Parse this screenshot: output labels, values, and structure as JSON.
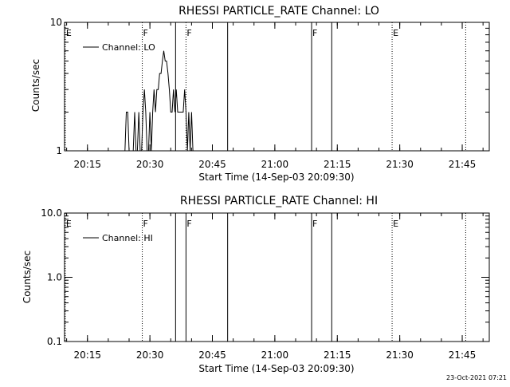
{
  "chart_data": [
    {
      "type": "line",
      "title": "RHESSI PARTICLE_RATE Channel: LO",
      "xlabel": "Start Time (14-Sep-03 20:09:30)",
      "ylabel": "Counts/sec",
      "y_scale": "log",
      "xlim": [
        "20:09:30",
        "21:51:30"
      ],
      "ylim": [
        1,
        10
      ],
      "x_ticks": [
        "20:15",
        "20:30",
        "20:45",
        "21:00",
        "21:15",
        "21:30",
        "21:45"
      ],
      "y_ticks": [
        "1",
        "10"
      ],
      "legend": {
        "position": "top-left",
        "entries": [
          "Channel: LO"
        ]
      },
      "series": [
        {
          "name": "Channel: LO",
          "x": [
            "20:24:00",
            "20:24:20",
            "20:24:40",
            "20:25:00",
            "20:25:20",
            "20:26:00",
            "20:26:20",
            "20:26:40",
            "20:27:00",
            "20:27:20",
            "20:27:40",
            "20:28:00",
            "20:28:20",
            "20:28:40",
            "20:29:00",
            "20:29:20",
            "20:29:40",
            "20:30:00",
            "20:30:20",
            "20:30:40",
            "20:31:00",
            "20:31:20",
            "20:31:40",
            "20:32:00",
            "20:32:20",
            "20:32:40",
            "20:33:00",
            "20:33:20",
            "20:33:40",
            "20:34:00",
            "20:34:20",
            "20:34:40",
            "20:35:00",
            "20:35:20",
            "20:35:40",
            "20:36:00",
            "20:36:20",
            "20:36:40",
            "20:37:00",
            "20:37:20",
            "20:37:40",
            "20:38:00",
            "20:38:20",
            "20:38:40",
            "20:39:00",
            "20:39:20",
            "20:39:40",
            "20:40:00",
            "20:40:20"
          ],
          "y": [
            1,
            2,
            2,
            1,
            1,
            1,
            2,
            1,
            1,
            2,
            1,
            1,
            2,
            3,
            2,
            1,
            1,
            2,
            1,
            2,
            3,
            2,
            3,
            3,
            4,
            4,
            5,
            6,
            5,
            5,
            4,
            3,
            2,
            2,
            3,
            2,
            3,
            2,
            2,
            2,
            2,
            2,
            3,
            2,
            1,
            2,
            1,
            2,
            1
          ]
        }
      ],
      "markers": [
        {
          "label": "E",
          "time": "20:09:40",
          "style": "dotted"
        },
        {
          "label": "F",
          "time": "20:28:10",
          "style": "dotted"
        },
        {
          "label": "",
          "time": "20:36:10",
          "style": "solid"
        },
        {
          "label": "F",
          "time": "20:38:40",
          "style": "dotted"
        },
        {
          "label": "",
          "time": "20:48:40",
          "style": "solid"
        },
        {
          "label": "F",
          "time": "21:08:50",
          "style": "solid"
        },
        {
          "label": "",
          "time": "21:13:40",
          "style": "solid"
        },
        {
          "label": "E",
          "time": "21:28:10",
          "style": "dotted"
        },
        {
          "label": "",
          "time": "21:45:50",
          "style": "dotted"
        }
      ]
    },
    {
      "type": "line",
      "title": "RHESSI PARTICLE_RATE Channel: HI",
      "xlabel": "Start Time (14-Sep-03 20:09:30)",
      "ylabel": "Counts/sec",
      "y_scale": "log",
      "xlim": [
        "20:09:30",
        "21:51:30"
      ],
      "ylim": [
        0.1,
        10
      ],
      "x_ticks": [
        "20:15",
        "20:30",
        "20:45",
        "21:00",
        "21:15",
        "21:30",
        "21:45"
      ],
      "y_ticks": [
        "0.1",
        "1.0",
        "10.0"
      ],
      "legend": {
        "position": "top-left",
        "entries": [
          "Channel: HI"
        ]
      },
      "series": [
        {
          "name": "Channel: HI",
          "x": [],
          "y": []
        }
      ],
      "markers": [
        {
          "label": "E",
          "time": "20:09:40",
          "style": "dotted"
        },
        {
          "label": "F",
          "time": "20:28:10",
          "style": "dotted"
        },
        {
          "label": "",
          "time": "20:36:10",
          "style": "solid"
        },
        {
          "label": "F",
          "time": "20:38:40",
          "style": "solid"
        },
        {
          "label": "",
          "time": "20:48:40",
          "style": "solid"
        },
        {
          "label": "F",
          "time": "21:08:50",
          "style": "solid"
        },
        {
          "label": "",
          "time": "21:13:40",
          "style": "solid"
        },
        {
          "label": "E",
          "time": "21:28:10",
          "style": "dotted"
        },
        {
          "label": "",
          "time": "21:45:50",
          "style": "dotted"
        }
      ]
    }
  ],
  "footer": {
    "timestamp": "23-Oct-2021 07:21"
  }
}
